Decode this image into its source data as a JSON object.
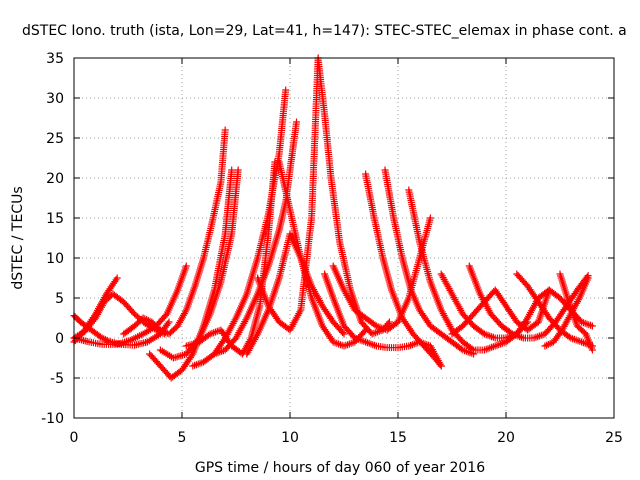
{
  "chart_data": {
    "type": "scatter",
    "title": "dSTEC Iono. truth (ista, Lon=29, Lat=41, h=147): STEC-STEC_elemax in phase cont. a",
    "xlabel": "GPS time / hours of day 060 of year 2016",
    "ylabel": "dSTEC  / TECUs",
    "xlim": [
      0,
      25
    ],
    "ylim": [
      -10,
      35
    ],
    "xticks": [
      0,
      5,
      10,
      15,
      20,
      25
    ],
    "yticks": [
      -10,
      -5,
      0,
      5,
      10,
      15,
      20,
      25,
      30,
      35
    ],
    "grid": true,
    "marker": "plus",
    "color": "#ff0000",
    "series": [
      {
        "x": [
          0.0,
          0.5,
          1.0,
          1.5,
          2.0
        ],
        "y": [
          -0.5,
          1.0,
          3.0,
          5.5,
          7.5
        ]
      },
      {
        "x": [
          0.0,
          0.3,
          0.8,
          1.3,
          1.7,
          2.2,
          2.8,
          3.4,
          4.0,
          4.4
        ],
        "y": [
          2.8,
          2.0,
          1.0,
          0.0,
          -0.5,
          -0.8,
          -0.9,
          -0.5,
          0.5,
          2.0
        ]
      },
      {
        "x": [
          0.0,
          0.5,
          1.0,
          1.4,
          1.8,
          2.3,
          2.8,
          3.3,
          3.8,
          4.2
        ],
        "y": [
          0.0,
          0.8,
          2.5,
          4.5,
          5.5,
          4.5,
          3.0,
          1.8,
          1.0,
          0.5
        ]
      },
      {
        "x": [
          0.0,
          0.7,
          1.3,
          2.0,
          2.6,
          3.2,
          3.8,
          4.3,
          4.8,
          5.2
        ],
        "y": [
          0.0,
          -0.5,
          -0.8,
          -0.8,
          -0.3,
          0.5,
          1.5,
          3.0,
          6.0,
          9.0
        ]
      },
      {
        "x": [
          2.3,
          2.8,
          3.2,
          3.6,
          4.0,
          4.4,
          4.8,
          5.2,
          5.6,
          6.0,
          6.4,
          6.8,
          7.0
        ],
        "y": [
          0.5,
          1.5,
          2.5,
          2.0,
          1.0,
          0.5,
          1.5,
          3.5,
          6.5,
          10.0,
          14.5,
          19.5,
          26.0
        ]
      },
      {
        "x": [
          3.5,
          4.0,
          4.5,
          5.0,
          5.5,
          6.0,
          6.5,
          7.0,
          7.3
        ],
        "y": [
          -2.0,
          -3.5,
          -5.0,
          -4.0,
          -2.0,
          1.5,
          6.0,
          13.0,
          21.0
        ]
      },
      {
        "x": [
          4.0,
          4.6,
          5.2,
          5.8,
          6.3,
          6.8,
          7.3,
          7.6
        ],
        "y": [
          -1.5,
          -2.5,
          -2.0,
          0.0,
          3.0,
          7.0,
          13.0,
          21.0
        ]
      },
      {
        "x": [
          5.2,
          5.8,
          6.3,
          6.8,
          7.3,
          7.8,
          8.2,
          8.6,
          9.0,
          9.3
        ],
        "y": [
          -1.0,
          -0.5,
          0.5,
          1.0,
          -1.0,
          -2.0,
          0.0,
          4.0,
          13.0,
          22.0
        ]
      },
      {
        "x": [
          5.5,
          6.0,
          6.5,
          7.0,
          7.5,
          8.0,
          8.5,
          9.0,
          9.5,
          9.8
        ],
        "y": [
          -3.5,
          -3.0,
          -2.0,
          0.0,
          2.5,
          5.5,
          10.0,
          15.5,
          23.0,
          31.0
        ]
      },
      {
        "x": [
          6.5,
          7.0,
          7.5,
          8.0,
          8.5,
          9.0,
          9.5,
          9.8,
          10.0,
          10.3
        ],
        "y": [
          -2.0,
          -1.5,
          0.0,
          2.5,
          5.5,
          9.0,
          13.5,
          17.0,
          21.0,
          27.0
        ]
      },
      {
        "x": [
          8.0,
          8.5,
          9.0,
          9.5,
          10.0,
          10.5,
          11.0,
          11.5,
          12.0,
          12.5
        ],
        "y": [
          -2.0,
          0.5,
          3.5,
          7.5,
          13.0,
          10.0,
          6.5,
          4.0,
          2.0,
          0.5
        ]
      },
      {
        "x": [
          8.5,
          9.0,
          9.5,
          10.0,
          10.5,
          11.0,
          11.3
        ],
        "y": [
          7.5,
          4.0,
          2.0,
          1.0,
          3.5,
          15.0,
          35.0
        ]
      },
      {
        "x": [
          9.5,
          10.0,
          10.5,
          11.0,
          11.5,
          12.0,
          12.5,
          13.0,
          13.5
        ],
        "y": [
          22.0,
          16.0,
          10.0,
          5.0,
          1.5,
          -0.5,
          -1.0,
          -0.5,
          1.0
        ]
      },
      {
        "x": [
          11.3,
          11.6,
          11.9,
          12.3,
          12.8,
          13.3,
          13.8,
          14.3,
          14.6
        ],
        "y": [
          35.0,
          28.0,
          20.0,
          12.0,
          6.0,
          2.0,
          0.5,
          1.0,
          2.0
        ]
      },
      {
        "x": [
          11.6,
          12.0,
          12.5,
          13.0,
          13.5,
          14.0,
          14.5,
          15.0,
          15.5,
          16.0,
          16.5,
          17.0
        ],
        "y": [
          8.0,
          5.0,
          1.5,
          0.0,
          -0.5,
          -1.0,
          -1.2,
          -1.2,
          -1.0,
          -0.5,
          -1.0,
          -3.5
        ]
      },
      {
        "x": [
          12.0,
          12.5,
          13.0,
          13.5,
          14.0,
          14.5,
          15.0,
          15.5,
          16.0,
          16.5
        ],
        "y": [
          9.0,
          6.0,
          3.5,
          2.5,
          1.5,
          1.0,
          2.0,
          5.0,
          10.0,
          15.0
        ]
      },
      {
        "x": [
          13.5,
          13.9,
          14.3,
          14.7,
          15.2,
          15.7,
          16.2,
          16.7,
          17.0
        ],
        "y": [
          20.5,
          15.0,
          10.0,
          6.0,
          2.5,
          0.5,
          -1.0,
          -2.5,
          -3.5
        ]
      },
      {
        "x": [
          14.4,
          14.8,
          15.2,
          15.6,
          16.0,
          16.5,
          17.0,
          17.5,
          18.0,
          18.5
        ],
        "y": [
          21.0,
          15.0,
          10.0,
          6.0,
          3.5,
          1.5,
          0.5,
          -0.5,
          -1.5,
          -2.0
        ]
      },
      {
        "x": [
          15.5,
          16.0,
          16.5,
          17.0,
          17.5,
          18.0,
          18.5,
          19.0,
          19.5,
          20.0
        ],
        "y": [
          18.5,
          12.0,
          7.0,
          3.5,
          1.0,
          -0.5,
          -1.5,
          -1.5,
          -1.0,
          -0.5
        ]
      },
      {
        "x": [
          17.0,
          17.5,
          18.0,
          18.5,
          19.0,
          19.5,
          20.0,
          20.5,
          21.0
        ],
        "y": [
          8.0,
          5.5,
          3.0,
          1.5,
          0.5,
          0.0,
          0.0,
          0.5,
          2.0
        ]
      },
      {
        "x": [
          18.3,
          18.8,
          19.3,
          19.8,
          20.3,
          20.8,
          21.3,
          21.8,
          22.3,
          22.8,
          23.3,
          23.8
        ],
        "y": [
          9.0,
          5.5,
          3.0,
          1.5,
          0.5,
          0.0,
          0.0,
          0.5,
          2.0,
          4.0,
          6.0,
          7.8
        ]
      },
      {
        "x": [
          17.5,
          18.0,
          18.5,
          19.0,
          19.5,
          20.0,
          20.5,
          21.0,
          21.5,
          22.0
        ],
        "y": [
          0.5,
          1.5,
          3.0,
          4.5,
          6.0,
          4.0,
          2.0,
          1.0,
          2.0,
          6.0
        ]
      },
      {
        "x": [
          20.5,
          21.0,
          21.5,
          22.0,
          22.5,
          23.0,
          23.5,
          24.0
        ],
        "y": [
          8.0,
          6.5,
          4.5,
          2.5,
          1.0,
          0.0,
          -0.5,
          -1.0
        ]
      },
      {
        "x": [
          20.0,
          20.5,
          21.0,
          21.5,
          22.0,
          22.5,
          23.0,
          23.5,
          24.0
        ],
        "y": [
          -0.5,
          0.5,
          2.5,
          5.0,
          6.0,
          5.0,
          3.5,
          2.0,
          1.5
        ]
      },
      {
        "x": [
          21.8,
          22.2,
          22.6,
          23.0,
          23.4,
          23.8
        ],
        "y": [
          -1.0,
          -0.5,
          1.0,
          3.0,
          5.0,
          7.5
        ]
      },
      {
        "x": [
          22.5,
          22.9,
          23.3,
          23.7,
          24.0
        ],
        "y": [
          8.0,
          4.5,
          1.5,
          0.5,
          -1.5
        ]
      }
    ]
  }
}
